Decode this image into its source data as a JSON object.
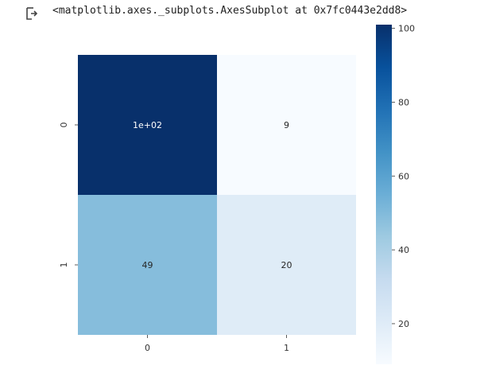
{
  "output": {
    "text": "<matplotlib.axes._subplots.AxesSubplot at 0x7fc0443e2dd8>",
    "icon": "output-arrow-icon"
  },
  "chart_data": {
    "type": "heatmap",
    "title": "",
    "xlabel": "",
    "ylabel": "",
    "x_categories": [
      "0",
      "1"
    ],
    "y_categories": [
      "0",
      "1"
    ],
    "values": [
      [
        101,
        9
      ],
      [
        49,
        20
      ]
    ],
    "annotations": [
      [
        "1e+02",
        "9"
      ],
      [
        "49",
        "20"
      ]
    ],
    "colormap": "Blues",
    "colorbar": {
      "min": 9,
      "max": 101,
      "ticks": [
        20,
        40,
        60,
        80,
        100
      ]
    }
  }
}
